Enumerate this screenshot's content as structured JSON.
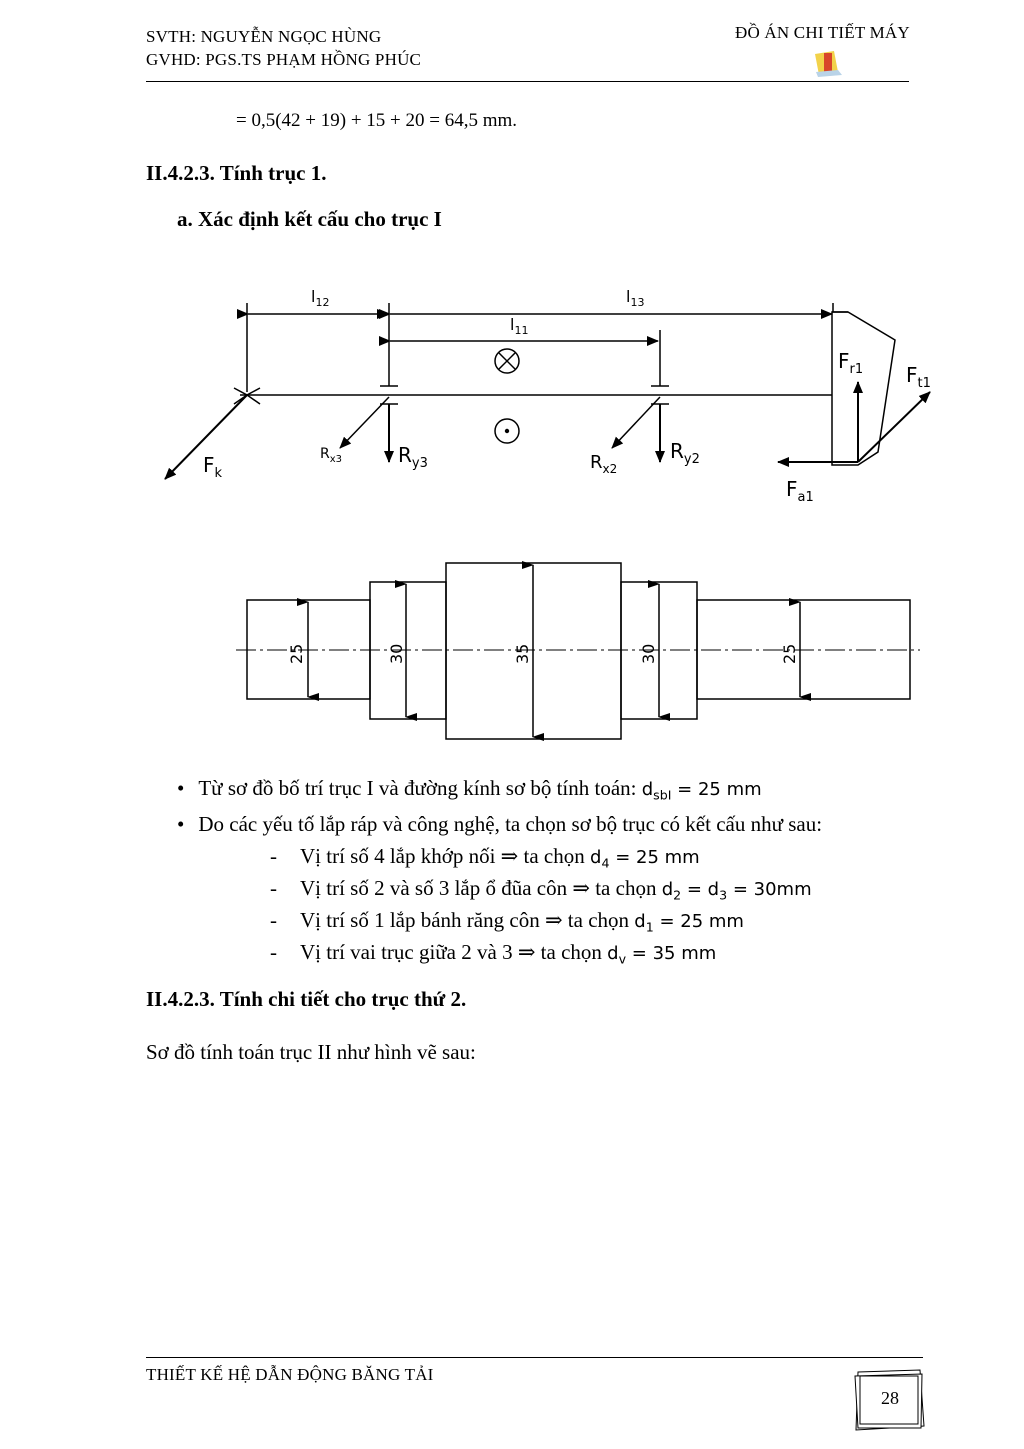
{
  "header": {
    "student": "SVTH: NGUYỄN NGỌC HÙNG",
    "advisor": "GVHD: PGS.TS PHẠM HỒNG PHÚC",
    "doc_title": "ĐỒ ÁN CHI TIẾT MÁY"
  },
  "equation": "= 0,5(42 + 19) + 15 + 20 = 64,5 mm.",
  "section1": {
    "heading": "II.4.2.3. Tính trục 1.",
    "sub_heading": "a.  Xác định kết cấu cho trục I"
  },
  "diagram1": {
    "labels": {
      "l12": "l",
      "l12_sub": "12",
      "l13": "l",
      "l13_sub": "13",
      "l11": "l",
      "l11_sub": "11",
      "Fr1": "F",
      "Fr1_sub": "r1",
      "Ft1": "F",
      "Ft1_sub": "t1",
      "Fa1": "F",
      "Fa1_sub": "a1",
      "Fk": "F",
      "Fk_sub": "k",
      "Rx3": "R",
      "Rx3_sub": "x3",
      "Ry3": "R",
      "Ry3_sub": "y3",
      "Rx2": "R",
      "Rx2_sub": "x2",
      "Ry2": "R",
      "Ry2_sub": "y2"
    }
  },
  "diagram2": {
    "diameters": [
      "25",
      "30",
      "35",
      "30",
      "25"
    ]
  },
  "bullets": {
    "b1_text": "Từ sơ đồ bố trí trục I và đường kính sơ bộ tính toán: ",
    "b1_sym": "d",
    "b1_sub": "sbI",
    "b1_val": " = 25 mm",
    "b2_text": "Do các yếu tố lắp ráp và công nghệ, ta chọn sơ bộ trục có kết cấu như sau:"
  },
  "dash_items": [
    {
      "text": "Vị trí số 4 lắp khớp nối ⇒ ta chọn ",
      "sym": "d",
      "sub": "4",
      "val": " = 25 mm"
    },
    {
      "text": "Vị trí số 2 và số 3 lắp ổ đũa côn ⇒ ta chọn ",
      "sym": "d",
      "sub": "2",
      "mid": " = d",
      "sub2": "3",
      "val": " = 30mm"
    },
    {
      "text": "Vị trí số 1 lắp bánh răng côn ⇒ ta chọn ",
      "sym": "d",
      "sub": "1",
      "val": " = 25 mm"
    },
    {
      "text": "Vị trí vai trục giữa 2 và 3 ⇒ ta chọn ",
      "sym": "d",
      "sub": "v",
      "val": " = 35 mm"
    }
  ],
  "section2": {
    "heading": "II.4.2.3. Tính chi tiết cho trục thứ 2.",
    "text": "Sơ đồ tính toán trục II như hình vẽ sau:"
  },
  "footer": {
    "title": "THIẾT KẾ HỆ DẪN ĐỘNG BĂNG TẢI",
    "page": "28"
  }
}
